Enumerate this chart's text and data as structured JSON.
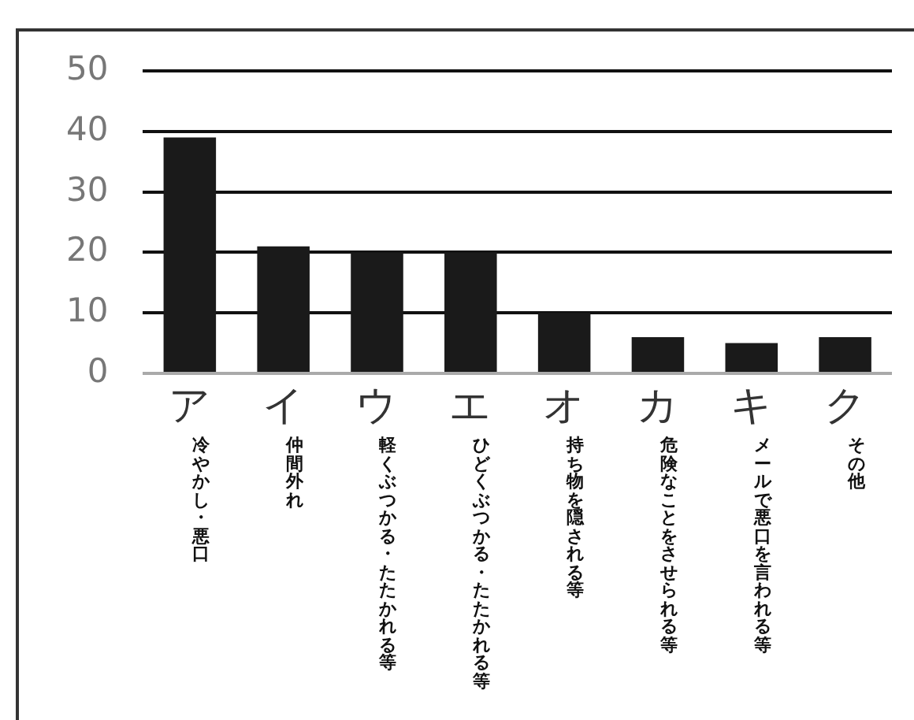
{
  "chart_data": {
    "type": "bar",
    "categories": [
      "ア",
      "イ",
      "ウ",
      "エ",
      "オ",
      "カ",
      "キ",
      "ク"
    ],
    "values": [
      39,
      21,
      20,
      20,
      10,
      6,
      5,
      6
    ],
    "color": "#1a1a1a",
    "ylim": [
      0,
      50
    ],
    "yticks": [
      0,
      10,
      20,
      30,
      40,
      50
    ],
    "grid": "y",
    "annotations": [
      "冷やかし・悪口",
      "仲間外れ",
      "軽くぶつかる・たたかれる等",
      "ひどくぶつかる・たたかれる等",
      "持ち物を隠される等",
      "危険なことをさせられる等",
      "メールで悪口を言われる等",
      "その他"
    ]
  }
}
